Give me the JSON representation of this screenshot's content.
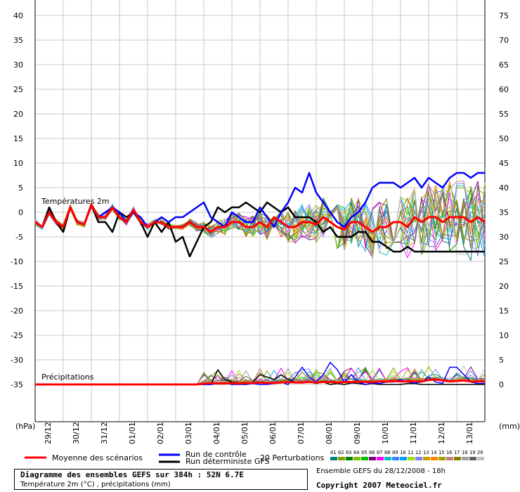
{
  "chart_data": {
    "type": "line",
    "left_axis": {
      "unit": "(hPa)",
      "ticks": [
        40,
        35,
        30,
        25,
        20,
        15,
        10,
        5,
        0,
        -5,
        -10,
        -15,
        -20,
        -25,
        -30,
        -35
      ],
      "ylim": [
        -35,
        40
      ]
    },
    "right_axis": {
      "unit": "(mm)",
      "ticks": [
        75,
        70,
        65,
        60,
        55,
        50,
        45,
        40,
        35,
        30,
        25,
        20,
        15,
        10,
        5,
        0
      ]
    },
    "x_dates": [
      "29/12",
      "30/12",
      "31/12",
      "01/01",
      "02/01",
      "03/01",
      "04/01",
      "05/01",
      "06/01",
      "07/01",
      "08/01",
      "09/01",
      "10/01",
      "11/01",
      "12/01",
      "13/01"
    ],
    "x_index_range": [
      0,
      64
    ],
    "temperature_label": "Températures 2m",
    "precip_label": "Précipitations",
    "grid": true,
    "temperature": {
      "mean": [
        -2,
        -3,
        0,
        -2,
        -3,
        1,
        -2,
        -2.5,
        1.5,
        -1,
        -1,
        1,
        -1,
        -2,
        0.5,
        -2,
        -3,
        -2,
        -2,
        -3,
        -3,
        -3,
        -2,
        -3,
        -3,
        -4,
        -3,
        -3,
        -2,
        -2,
        -3,
        -3,
        -2,
        -3,
        -1,
        -2,
        -3,
        -3,
        -2,
        -2,
        -2.5,
        -1,
        -2,
        -3,
        -3.5,
        -2,
        -2,
        -3,
        -4,
        -3,
        -3,
        -2,
        -2,
        -3,
        -1,
        -2,
        -1,
        -1,
        -2,
        -1,
        -1,
        -1,
        -2,
        -1,
        -2
      ],
      "control": [
        -2,
        -3,
        0,
        -2,
        -3,
        1,
        -2,
        -2.5,
        1.5,
        -1,
        0,
        1,
        0,
        -2,
        0,
        -1,
        -3,
        -2,
        -1,
        -2,
        -1,
        -1,
        0,
        1,
        2,
        -1,
        -2,
        -3,
        0,
        -1,
        -2,
        -2,
        1,
        -1,
        -3,
        0,
        2,
        5,
        4,
        8,
        4,
        2,
        0,
        -2,
        -3,
        -1,
        0,
        2,
        5,
        6,
        6,
        6,
        5,
        6,
        7,
        5,
        7,
        6,
        5,
        7,
        8,
        8,
        7,
        8,
        8
      ],
      "deterministic": [
        -2,
        -3,
        1,
        -2,
        -4,
        1,
        -2,
        -2.5,
        1.5,
        -2,
        -2,
        -4,
        0,
        -1,
        0,
        -2,
        -5,
        -2,
        -4,
        -2,
        -6,
        -5,
        -9,
        -6,
        -3,
        -2,
        1,
        0,
        1,
        1,
        2,
        1,
        0,
        2,
        1,
        0,
        1,
        -1,
        -1,
        -1,
        -2,
        -4,
        -3,
        -5,
        -5,
        -5,
        -4,
        -4,
        -6,
        -6,
        -7,
        -8,
        -8,
        -7,
        -8,
        -8,
        -8,
        -8,
        -8,
        -8,
        -8,
        -8,
        -8,
        -8,
        -8
      ],
      "perturbations_count": 20
    },
    "precipitation": {
      "mean": [
        0,
        0,
        0,
        0,
        0,
        0,
        0,
        0,
        0,
        0,
        0,
        0,
        0,
        0,
        0,
        0,
        0,
        0,
        0,
        0,
        0,
        0,
        0,
        0,
        0.2,
        0.3,
        0.2,
        0.2,
        0.3,
        0.2,
        0.3,
        0.3,
        0.4,
        0.3,
        0.3,
        0.4,
        0.5,
        0.4,
        0.4,
        0.5,
        0.4,
        0.5,
        0.5,
        0.4,
        0.5,
        0.5,
        0.6,
        0.5,
        0.5,
        0.6,
        0.6,
        0.7,
        0.6,
        0.6,
        0.7,
        0.6,
        0.9,
        1.0,
        0.8,
        0.6,
        0.7,
        0.8,
        0.6,
        0.6,
        0.6
      ],
      "control": [
        0,
        0,
        0,
        0,
        0,
        0,
        0,
        0,
        0,
        0,
        0,
        0,
        0,
        0,
        0,
        0,
        0,
        0,
        0,
        0,
        0,
        0,
        0,
        0,
        0,
        0,
        0.2,
        0.3,
        0,
        0,
        0,
        0.2,
        0,
        0,
        0.2,
        0.5,
        0,
        1.5,
        3.5,
        1.5,
        0.5,
        2.0,
        4.5,
        3.0,
        0.5,
        2.0,
        0.5,
        0,
        0.3,
        0.2,
        0.5,
        0.5,
        1.0,
        0.5,
        0.3,
        0.5,
        1.5,
        0.5,
        0.2,
        3.5,
        3.5,
        2.0,
        0.5,
        0.2,
        0.2
      ],
      "deterministic": [
        0,
        0,
        0,
        0,
        0,
        0,
        0,
        0,
        0,
        0,
        0,
        0,
        0,
        0,
        0,
        0,
        0,
        0,
        0,
        0,
        0,
        0,
        0,
        0,
        0,
        0,
        3.0,
        1.0,
        0.5,
        0.3,
        0,
        0.5,
        2.0,
        1.5,
        1.0,
        2.0,
        1.0,
        0.5,
        0.3,
        0.5,
        0.2,
        0.5,
        0,
        0.2,
        0,
        0.3,
        0.2,
        0,
        0.2,
        0,
        0,
        0,
        0,
        0.2,
        0.2,
        0,
        0,
        0,
        0,
        0,
        0,
        0,
        0,
        0,
        0
      ]
    }
  },
  "legend": {
    "mean_label": "Moyenne des scénarios",
    "mean_color": "#ff0000",
    "control_label": "Run de contrôle",
    "control_color": "#0000ff",
    "deterministic_label": "Run déterministe GFS",
    "deterministic_color": "#000000",
    "perturbations_label": "20 Perturbations",
    "perturbation_numbers": [
      "01",
      "02",
      "03",
      "04",
      "05",
      "06",
      "07",
      "08",
      "09",
      "10",
      "11",
      "12",
      "13",
      "14",
      "15",
      "16",
      "17",
      "18",
      "19",
      "20"
    ],
    "perturbation_colors": [
      "#008080",
      "#80a000",
      "#008000",
      "#80c000",
      "#00c000",
      "#800080",
      "#ff00ff",
      "#00c0c0",
      "#4080ff",
      "#00a0ff",
      "#a0e000",
      "#8080ff",
      "#c0a000",
      "#ff8000",
      "#a0a000",
      "#c08080",
      "#808000",
      "#a0a0a0",
      "#606060",
      "#c0c0c0"
    ]
  },
  "title": {
    "main": "Diagramme des ensembles GEFS sur 384h : 52N 6.7E",
    "sub": "Température 2m (°C) , précipitations (mm)"
  },
  "info": {
    "ensemble": "Ensemble GEFS du 28/12/2008 - 18h",
    "copyright": "Copyright 2007 Meteociel.fr"
  }
}
